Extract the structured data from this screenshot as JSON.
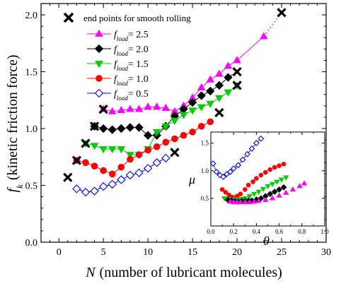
{
  "chart_data": [
    {
      "type": "line",
      "xlabel_var": "N",
      "xlabel_rest": "(number of lubricant molecules)",
      "ylabel_var": "f",
      "ylabel_sub": "k",
      "ylabel_rest": "(kinetic friction force)",
      "xlim": [
        -2,
        30
      ],
      "ylim": [
        0,
        2.1
      ],
      "xticks": [
        "0",
        "5",
        "10",
        "15",
        "20",
        "25",
        "30"
      ],
      "xtick_values": [
        0,
        5,
        10,
        15,
        20,
        25,
        30
      ],
      "yticks": [
        "0.0",
        "0.5",
        "1.0",
        "1.5",
        "2.0"
      ],
      "ytick_values": [
        0.0,
        0.5,
        1.0,
        1.5,
        2.0
      ],
      "legend": {
        "endpoints_label": "end points for smooth rolling",
        "series_var": "f",
        "series_sub": "load"
      },
      "series": [
        {
          "name": "= 2.5",
          "color": "#ff00ff",
          "marker": "triangle-up",
          "filled": true,
          "x": [
            5,
            6,
            7,
            8,
            9,
            10,
            11,
            12,
            13,
            14,
            15,
            16,
            17,
            18,
            19,
            20,
            23
          ],
          "y": [
            1.17,
            1.15,
            1.16,
            1.17,
            1.17,
            1.19,
            1.19,
            1.18,
            1.15,
            1.2,
            1.27,
            1.36,
            1.43,
            1.48,
            1.55,
            1.6,
            1.81
          ],
          "extension": {
            "x": [
              23,
              25
            ],
            "y": [
              1.81,
              2.02
            ]
          }
        },
        {
          "name": "= 2.0",
          "color": "#000000",
          "marker": "diamond",
          "filled": true,
          "x": [
            4,
            5,
            6,
            7,
            8,
            9,
            10,
            11,
            12,
            13,
            14,
            15,
            16,
            17,
            18,
            19
          ],
          "y": [
            1.02,
            1.0,
            0.99,
            1.0,
            1.01,
            1.01,
            0.94,
            0.94,
            1.02,
            1.11,
            1.17,
            1.23,
            1.29,
            1.33,
            1.38,
            1.45
          ],
          "extension": {
            "x": [
              19,
              20
            ],
            "y": [
              1.45,
              1.5
            ]
          }
        },
        {
          "name": "= 1.5",
          "color": "#00cc00",
          "marker": "triangle-down",
          "filled": true,
          "x": [
            3,
            4,
            5,
            6,
            7,
            8,
            9,
            10,
            11,
            12,
            13,
            14,
            15,
            16,
            17,
            18,
            19,
            20
          ],
          "y": [
            0.87,
            0.85,
            0.82,
            0.82,
            0.82,
            0.77,
            0.77,
            0.82,
            0.97,
            1.02,
            1.07,
            1.12,
            1.16,
            1.19,
            1.22,
            1.27,
            1.32,
            1.38
          ]
        },
        {
          "name": "= 1.0",
          "color": "#ff0000",
          "marker": "circle",
          "filled": true,
          "x": [
            2,
            3,
            4,
            5,
            6,
            7,
            8,
            9,
            10,
            11,
            12,
            13,
            14,
            15,
            16,
            17
          ],
          "y": [
            0.72,
            0.7,
            0.67,
            0.63,
            0.6,
            0.66,
            0.73,
            0.77,
            0.81,
            0.84,
            0.88,
            0.91,
            0.94,
            0.97,
            1.02,
            1.06
          ]
        },
        {
          "name": "= 0.5",
          "color": "#0000ff",
          "marker": "diamond",
          "filled": false,
          "x": [
            2,
            3,
            4,
            5,
            6,
            7,
            8,
            9,
            10,
            11,
            12
          ],
          "y": [
            0.47,
            0.44,
            0.45,
            0.49,
            0.51,
            0.55,
            0.59,
            0.61,
            0.65,
            0.7,
            0.74
          ]
        }
      ],
      "endpoints": {
        "x": [
          1,
          2,
          3,
          4,
          5,
          13,
          18,
          20,
          20,
          25
        ],
        "y": [
          0.57,
          0.72,
          0.87,
          1.02,
          1.17,
          0.79,
          1.14,
          1.38,
          1.5,
          2.02
        ]
      }
    },
    {
      "type": "scatter",
      "inset": true,
      "xlabel": "θ",
      "ylabel": "μ",
      "xlim": [
        0,
        1.0
      ],
      "ylim": [
        0,
        1.7
      ],
      "xticks": [
        "0.0",
        "0.2",
        "0.4",
        "0.6",
        "0.8",
        "1.0"
      ],
      "xtick_values": [
        0,
        0.2,
        0.4,
        0.6,
        0.8,
        1.0
      ],
      "yticks": [
        "0.5",
        "1.0",
        "1.5"
      ],
      "ytick_values": [
        0.5,
        1.0,
        1.5
      ],
      "series": [
        {
          "name": "= 0.5",
          "color": "#0000ff",
          "marker": "diamond",
          "filled": false,
          "x": [
            0.02,
            0.05,
            0.08,
            0.11,
            0.14,
            0.17,
            0.2,
            0.24,
            0.28,
            0.32,
            0.36,
            0.4,
            0.44
          ],
          "y": [
            1.13,
            0.98,
            0.92,
            0.89,
            0.94,
            0.98,
            1.04,
            1.1,
            1.2,
            1.3,
            1.4,
            1.5,
            1.58
          ]
        },
        {
          "name": "= 1.0",
          "color": "#ff0000",
          "marker": "circle",
          "filled": true,
          "x": [
            0.1,
            0.13,
            0.16,
            0.19,
            0.23,
            0.26,
            0.3,
            0.33,
            0.37,
            0.4,
            0.44,
            0.48,
            0.52,
            0.56,
            0.6,
            0.64
          ],
          "y": [
            0.66,
            0.61,
            0.56,
            0.52,
            0.54,
            0.58,
            0.66,
            0.74,
            0.8,
            0.86,
            0.92,
            0.97,
            1.02,
            1.06,
            1.09,
            1.12
          ]
        },
        {
          "name": "= 1.5",
          "color": "#00cc00",
          "marker": "triangle-down",
          "filled": true,
          "x": [
            0.12,
            0.15,
            0.18,
            0.21,
            0.24,
            0.27,
            0.3,
            0.34,
            0.38,
            0.42,
            0.46,
            0.5,
            0.54,
            0.58,
            0.62,
            0.66
          ],
          "y": [
            0.5,
            0.49,
            0.48,
            0.47,
            0.48,
            0.49,
            0.5,
            0.54,
            0.58,
            0.62,
            0.67,
            0.72,
            0.76,
            0.8,
            0.84,
            0.88
          ]
        },
        {
          "name": "= 2.0",
          "color": "#000000",
          "marker": "diamond",
          "filled": true,
          "x": [
            0.15,
            0.18,
            0.21,
            0.24,
            0.27,
            0.3,
            0.33,
            0.36,
            0.4,
            0.44,
            0.48,
            0.52,
            0.56,
            0.6,
            0.64
          ],
          "y": [
            0.47,
            0.46,
            0.45,
            0.44,
            0.45,
            0.45,
            0.46,
            0.46,
            0.48,
            0.5,
            0.54,
            0.58,
            0.62,
            0.66,
            0.7
          ]
        },
        {
          "name": "= 2.5",
          "color": "#ff00ff",
          "marker": "triangle-up",
          "filled": true,
          "x": [
            0.17,
            0.2,
            0.23,
            0.26,
            0.3,
            0.34,
            0.38,
            0.42,
            0.48,
            0.54,
            0.6,
            0.66,
            0.72,
            0.78,
            0.82
          ],
          "y": [
            0.44,
            0.43,
            0.43,
            0.43,
            0.43,
            0.43,
            0.44,
            0.45,
            0.47,
            0.5,
            0.55,
            0.6,
            0.66,
            0.72,
            0.77
          ]
        }
      ]
    }
  ]
}
